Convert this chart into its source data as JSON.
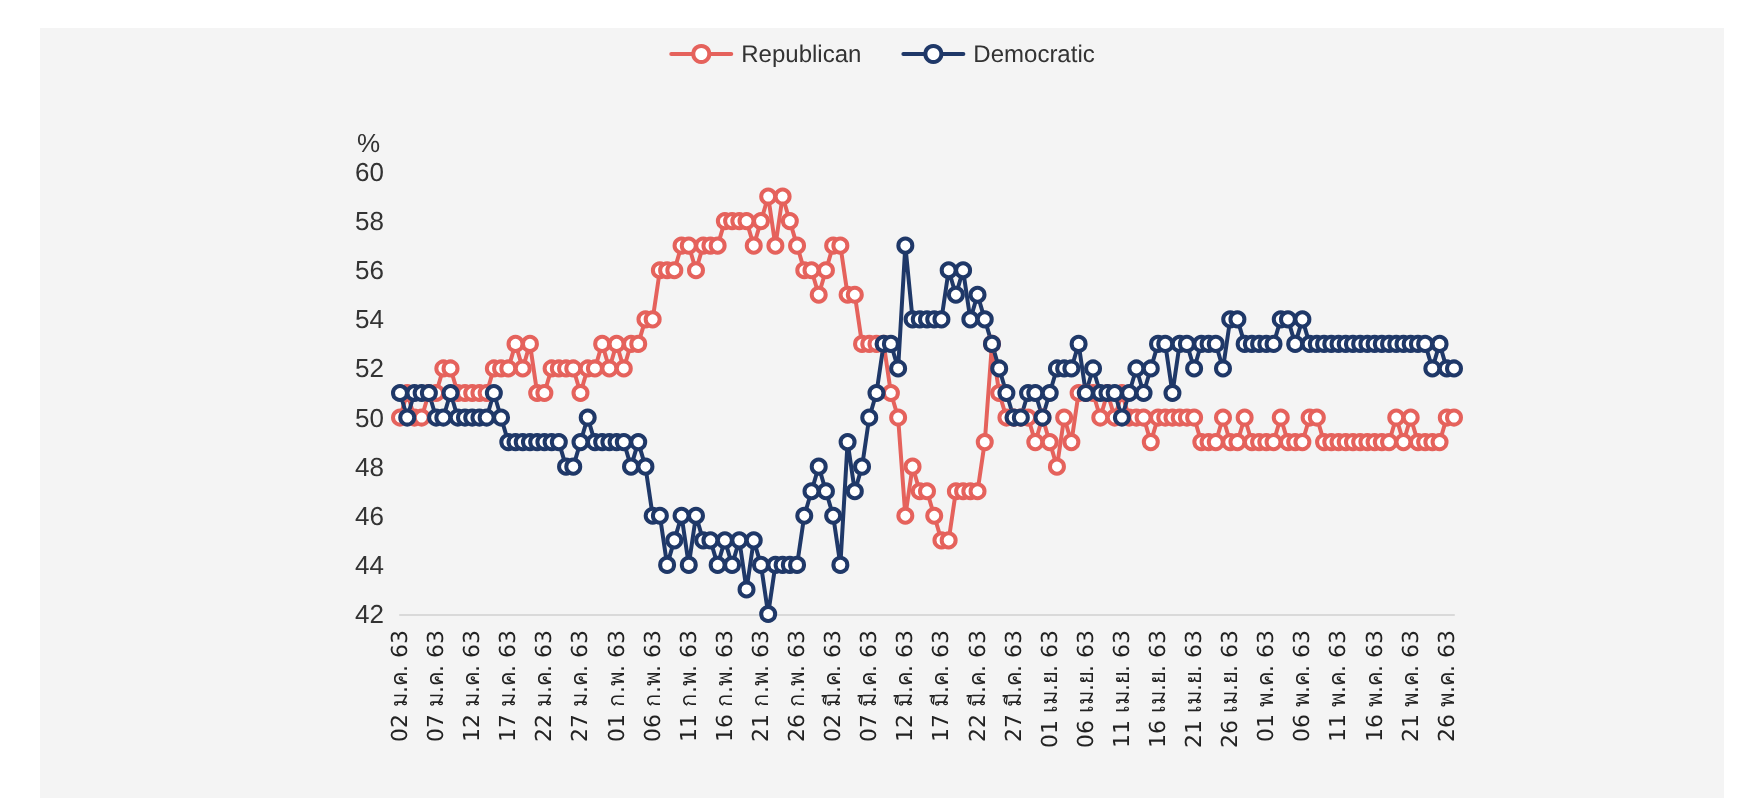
{
  "chart_data": {
    "type": "line",
    "ylabel": "%",
    "ylim": [
      42,
      60
    ],
    "yticks": [
      42,
      44,
      46,
      48,
      50,
      52,
      54,
      56,
      58,
      60
    ],
    "grid": false,
    "legend": "top",
    "marker": "circle",
    "line_style": "solid",
    "categories": [
      "02 ม.ค. 63",
      null,
      null,
      null,
      null,
      "07 ม.ค. 63",
      null,
      null,
      null,
      null,
      "12 ม.ค. 63",
      null,
      null,
      null,
      null,
      "17 ม.ค. 63",
      null,
      null,
      null,
      null,
      "22 ม.ค. 63",
      null,
      null,
      null,
      null,
      "27 ม.ค. 63",
      null,
      null,
      null,
      null,
      "01 ก.พ. 63",
      null,
      null,
      null,
      null,
      "06 ก.พ. 63",
      null,
      null,
      null,
      null,
      "11 ก.พ. 63",
      null,
      null,
      null,
      null,
      "16 ก.พ. 63",
      null,
      null,
      null,
      null,
      "21 ก.พ. 63",
      null,
      null,
      null,
      null,
      "26 ก.พ. 63",
      null,
      null,
      null,
      null,
      "02 มี.ค. 63",
      null,
      null,
      null,
      null,
      "07 มี.ค. 63",
      null,
      null,
      null,
      null,
      "12 มี.ค. 63",
      null,
      null,
      null,
      null,
      "17 มี.ค. 63",
      null,
      null,
      null,
      null,
      "22 มี.ค. 63",
      null,
      null,
      null,
      null,
      "27 มี.ค. 63",
      null,
      null,
      null,
      null,
      "01 เม.ย. 63",
      null,
      null,
      null,
      null,
      "06 เม.ย. 63",
      null,
      null,
      null,
      null,
      "11 เม.ย. 63",
      null,
      null,
      null,
      null,
      "16 เม.ย. 63",
      null,
      null,
      null,
      null,
      "21 เม.ย. 63",
      null,
      null,
      null,
      null,
      "26 เม.ย. 63",
      null,
      null,
      null,
      null,
      "01 พ.ค. 63",
      null,
      null,
      null,
      null,
      "06 พ.ค. 63",
      null,
      null,
      null,
      null,
      "11 พ.ค. 63",
      null,
      null,
      null,
      null,
      "16 พ.ค. 63",
      null,
      null,
      null,
      null,
      "21 พ.ค. 63",
      null,
      null,
      null,
      null,
      "26 พ.ค. 63",
      null
    ],
    "series": [
      {
        "name": "Republican",
        "color": "#e5625c",
        "values": [
          50,
          51,
          50,
          50,
          51,
          51,
          52,
          52,
          51,
          51,
          51,
          51,
          51,
          52,
          52,
          52,
          53,
          52,
          53,
          51,
          51,
          52,
          52,
          52,
          52,
          51,
          52,
          52,
          53,
          52,
          53,
          52,
          53,
          53,
          54,
          54,
          56,
          56,
          56,
          57,
          57,
          56,
          57,
          57,
          57,
          58,
          58,
          58,
          58,
          57,
          58,
          59,
          57,
          59,
          58,
          57,
          56,
          56,
          55,
          56,
          57,
          57,
          55,
          55,
          53,
          53,
          53,
          53,
          51,
          50,
          46,
          48,
          47,
          47,
          46,
          45,
          45,
          47,
          47,
          47,
          47,
          49,
          53,
          51,
          50,
          50,
          50,
          50,
          49,
          50,
          49,
          48,
          50,
          49,
          51,
          51,
          51,
          50,
          51,
          50,
          51,
          50,
          50,
          50,
          49,
          50,
          50,
          50,
          50,
          50,
          50,
          49,
          49,
          49,
          50,
          49,
          49,
          50,
          49,
          49,
          49,
          49,
          50,
          49,
          49,
          49,
          50,
          50,
          49,
          49,
          49,
          49,
          49,
          49,
          49,
          49,
          49,
          49,
          50,
          49,
          50,
          49,
          49,
          49,
          49,
          50,
          50
        ]
      },
      {
        "name": "Democratic",
        "color": "#1f3868",
        "values": [
          51,
          50,
          51,
          51,
          51,
          50,
          50,
          51,
          50,
          50,
          50,
          50,
          50,
          51,
          50,
          49,
          49,
          49,
          49,
          49,
          49,
          49,
          49,
          48,
          48,
          49,
          50,
          49,
          49,
          49,
          49,
          49,
          48,
          49,
          48,
          46,
          46,
          44,
          45,
          46,
          44,
          46,
          45,
          45,
          44,
          45,
          44,
          45,
          43,
          45,
          44,
          42,
          44,
          44,
          44,
          44,
          46,
          47,
          48,
          47,
          46,
          44,
          49,
          47,
          48,
          50,
          51,
          53,
          53,
          52,
          57,
          54,
          54,
          54,
          54,
          54,
          56,
          55,
          56,
          54,
          55,
          54,
          53,
          52,
          51,
          50,
          50,
          51,
          51,
          50,
          51,
          52,
          52,
          52,
          53,
          51,
          52,
          51,
          51,
          51,
          50,
          51,
          52,
          51,
          52,
          53,
          53,
          51,
          53,
          53,
          52,
          53,
          53,
          53,
          52,
          54,
          54,
          53,
          53,
          53,
          53,
          53,
          54,
          54,
          53,
          54,
          53,
          53,
          53,
          53,
          53,
          53,
          53,
          53,
          53,
          53,
          53,
          53,
          53,
          53,
          53,
          53,
          53,
          52,
          53,
          52,
          52
        ]
      }
    ]
  }
}
